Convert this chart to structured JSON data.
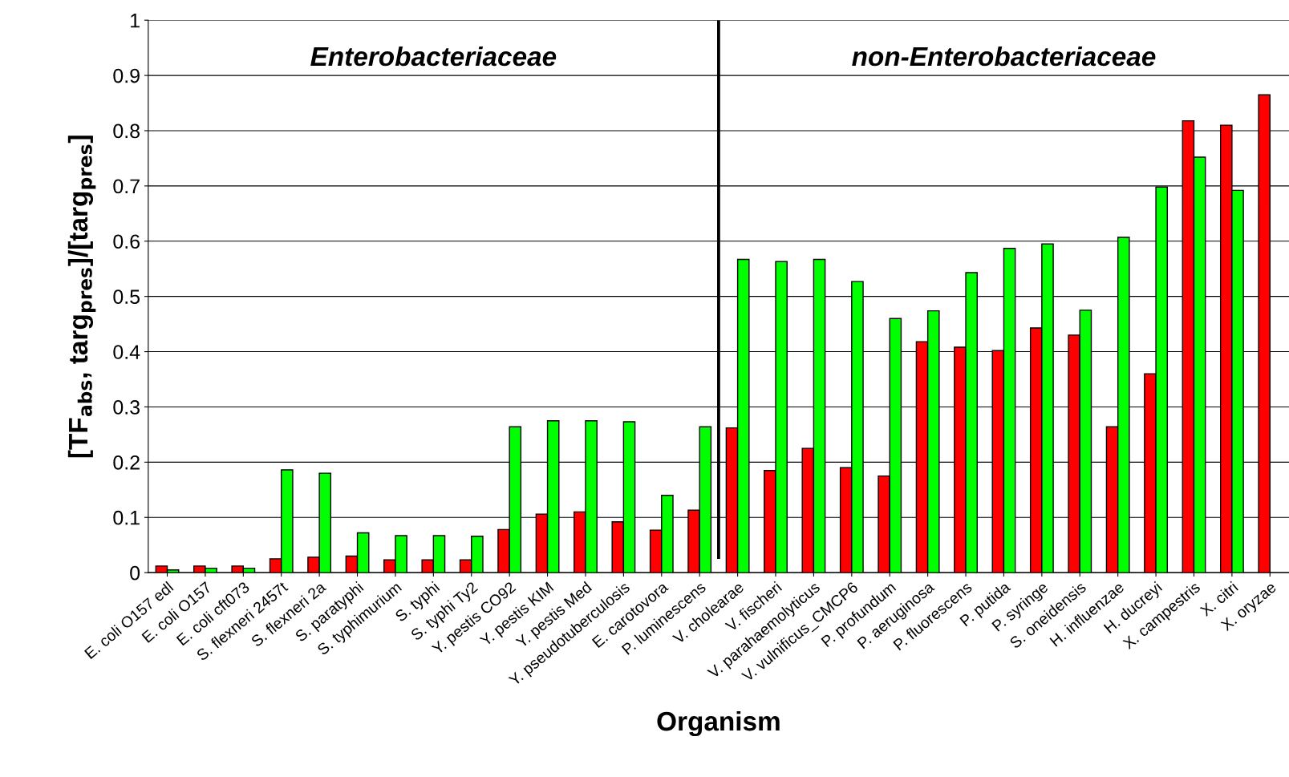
{
  "chart_data": {
    "type": "bar",
    "xlabel": "Organism",
    "ylabel": "[TF$_{abs}$, targ$_{pres}$]/[targ$_{pres}$]",
    "categories": [
      "E. coli O157 edl",
      "E. coli O157",
      "E. coli cft073",
      "S. flexneri 2457t",
      "S. flexneri 2a",
      "S. paratyphi",
      "S. typhimurium",
      "S. typhi",
      "S. typhi Ty2",
      "Y. pestis CO92",
      "Y. pestis KIM",
      "Y. pestis Med",
      "Y. pseudotuberculosis",
      "E. carotovora",
      "P. luminescens",
      "V. cholearae",
      "V. fischeri",
      "V. parahaemolyticus",
      "V. vulnificus_CMCP6",
      "P. profundum",
      "P. aeruginosa",
      "P. fluorescens",
      "P. putida",
      "P. syringe",
      "S. oneidensis",
      "H. influenzae",
      "H. ducreyi",
      "X. campestris",
      "X. citri",
      "X. oryzae"
    ],
    "series": [
      {
        "color": "#ff0000",
        "values": [
          0.012,
          0.012,
          0.012,
          0.025,
          0.028,
          0.03,
          0.023,
          0.023,
          0.023,
          0.078,
          0.106,
          0.11,
          0.092,
          0.077,
          0.113,
          0.262,
          0.185,
          0.225,
          0.19,
          0.175,
          0.418,
          0.408,
          0.402,
          0.443,
          0.43,
          0.264,
          0.36,
          0.818,
          0.81,
          0.865
        ]
      },
      {
        "color": "#00ff00",
        "values": [
          0.005,
          0.008,
          0.008,
          0.186,
          0.18,
          0.072,
          0.067,
          0.067,
          0.066,
          0.264,
          0.275,
          0.275,
          0.273,
          0.14,
          0.264,
          0.567,
          0.563,
          0.567,
          0.527,
          0.46,
          0.474,
          0.543,
          0.587,
          0.595,
          0.475,
          0.607,
          0.698,
          0.752,
          0.692,
          null
        ]
      }
    ],
    "ylim": [
      0,
      1
    ],
    "yticks": [
      0,
      0.1,
      0.2,
      0.3,
      0.4,
      0.5,
      0.6,
      0.7,
      0.8,
      0.9,
      1
    ],
    "grid": "y",
    "annotations": [
      "Enterobacteriaceae",
      "non-Enterobacteriaceae"
    ]
  }
}
